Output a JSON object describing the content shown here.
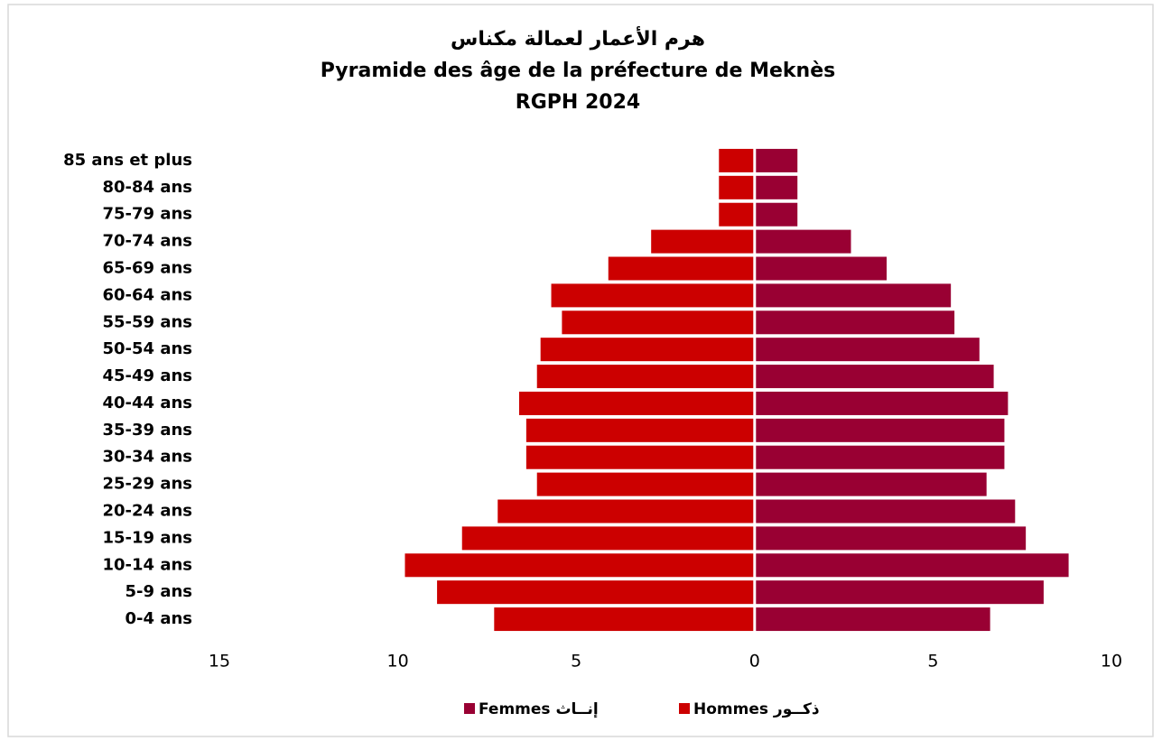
{
  "chart_data": {
    "type": "pyramid",
    "title": [
      "هرم الأعمار لعمالة مكناس",
      "Pyramide des âge de la préfecture de Meknès",
      "RGPH 2024"
    ],
    "categories": [
      "0-4 ans",
      "5-9 ans",
      "10-14 ans",
      "15-19 ans",
      "20-24 ans",
      "25-29 ans",
      "30-34 ans",
      "35-39 ans",
      "40-44 ans",
      "45-49 ans",
      "50-54 ans",
      "55-59 ans",
      "60-64 ans",
      "65-69 ans",
      "70-74 ans",
      "75-79 ans",
      "80-84 ans",
      "85 ans et plus"
    ],
    "series": [
      {
        "name": "Femmes إنــاث",
        "color": "#990033",
        "values": [
          6.6,
          8.1,
          8.8,
          7.6,
          7.3,
          6.5,
          7.0,
          7.0,
          7.1,
          6.7,
          6.3,
          5.6,
          5.5,
          3.7,
          2.7,
          1.2,
          1.2,
          1.2
        ]
      },
      {
        "name": "Hommes ذكــور",
        "color": "#cc0000",
        "values": [
          -7.3,
          -8.9,
          -9.8,
          -8.2,
          -7.2,
          -6.1,
          -6.4,
          -6.4,
          -6.6,
          -6.1,
          -6.0,
          -5.4,
          -5.7,
          -4.1,
          -2.9,
          -1.0,
          -1.0,
          -1.0
        ]
      }
    ],
    "xlim": [
      -15,
      10
    ],
    "xticks": [
      {
        "value": -15,
        "label": "15"
      },
      {
        "value": -10,
        "label": "10"
      },
      {
        "value": -5,
        "label": "5"
      },
      0,
      5,
      10
    ]
  }
}
